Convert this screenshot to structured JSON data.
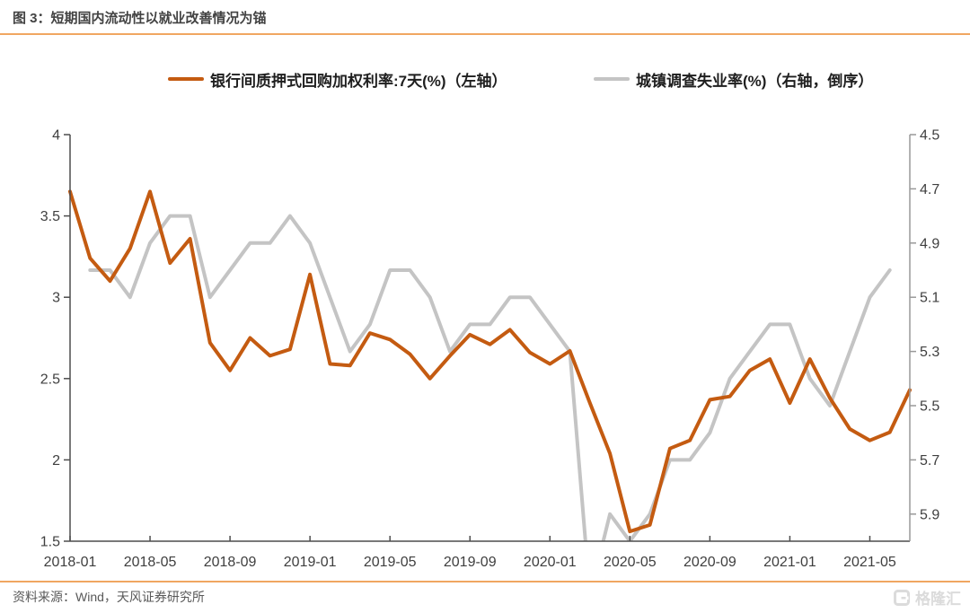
{
  "figure": {
    "title": "图 3：短期国内流动性以就业改善情况为锚"
  },
  "legend": [
    {
      "label": "银行间质押式回购加权利率:7天(%)（左轴）",
      "color": "#C45B11"
    },
    {
      "label": "城镇调查失业率(%)（右轴，倒序）",
      "color": "#C4C4C4"
    }
  ],
  "chart_data": {
    "type": "line",
    "title": "图 3：短期国内流动性以就业改善情况为锚",
    "x": [
      "2018-01",
      "2018-02",
      "2018-03",
      "2018-04",
      "2018-05",
      "2018-06",
      "2018-07",
      "2018-08",
      "2018-09",
      "2018-10",
      "2018-11",
      "2018-12",
      "2019-01",
      "2019-02",
      "2019-03",
      "2019-04",
      "2019-05",
      "2019-06",
      "2019-07",
      "2019-08",
      "2019-09",
      "2019-10",
      "2019-11",
      "2019-12",
      "2020-01",
      "2020-02",
      "2020-03",
      "2020-04",
      "2020-05",
      "2020-06",
      "2020-07",
      "2020-08",
      "2020-09",
      "2020-10",
      "2020-11",
      "2020-12",
      "2021-01",
      "2021-02",
      "2021-03",
      "2021-04",
      "2021-05",
      "2021-06",
      "2021-07"
    ],
    "x_tick_labels": [
      "2018-01",
      "2018-05",
      "2018-09",
      "2019-01",
      "2019-05",
      "2019-09",
      "2020-01",
      "2020-05",
      "2020-09",
      "2021-01",
      "2021-05"
    ],
    "series": [
      {
        "name": "银行间质押式回购加权利率:7天(%)（左轴）",
        "axis": "left",
        "color": "#C45B11",
        "values": [
          3.65,
          3.24,
          3.1,
          3.3,
          3.65,
          3.21,
          3.36,
          2.72,
          2.55,
          2.75,
          2.64,
          2.68,
          3.14,
          2.59,
          2.58,
          2.78,
          2.74,
          2.65,
          2.5,
          2.64,
          2.77,
          2.71,
          2.8,
          2.66,
          2.59,
          2.67,
          2.35,
          2.04,
          1.56,
          1.6,
          2.07,
          2.12,
          2.37,
          2.39,
          2.55,
          2.62,
          2.35,
          2.62,
          2.38,
          2.19,
          2.12,
          2.17,
          2.43
        ]
      },
      {
        "name": "城镇调查失业率(%)（右轴，倒序）",
        "axis": "right",
        "color": "#C4C4C4",
        "values": [
          null,
          5.0,
          5.0,
          5.1,
          4.9,
          4.8,
          4.8,
          5.1,
          5.0,
          4.9,
          4.9,
          4.8,
          4.9,
          5.1,
          5.3,
          5.2,
          5.0,
          5.0,
          5.1,
          5.3,
          5.2,
          5.2,
          5.1,
          5.1,
          5.2,
          5.3,
          6.2,
          5.9,
          6.0,
          5.9,
          5.7,
          5.7,
          5.6,
          5.4,
          5.3,
          5.2,
          5.2,
          5.4,
          5.5,
          5.3,
          5.1,
          5.0,
          null
        ]
      }
    ],
    "left_axis": {
      "min": 1.5,
      "max": 4.0,
      "tick_labels": [
        "4",
        "3.5",
        "3",
        "2.5",
        "2",
        "1.5"
      ],
      "tick_values": [
        4,
        3.5,
        3,
        2.5,
        2,
        1.5
      ]
    },
    "right_axis": {
      "min": 4.5,
      "max": 6.0,
      "inverted": true,
      "tick_labels": [
        "4.5",
        "4.7",
        "4.9",
        "5.1",
        "5.3",
        "5.5",
        "5.7",
        "5.9"
      ],
      "tick_values": [
        4.5,
        4.7,
        4.9,
        5.1,
        5.3,
        5.5,
        5.7,
        5.9
      ]
    },
    "grid": false,
    "legend_position": "top"
  },
  "footer": {
    "source": "资料来源：Wind，天风证券研究所",
    "logo_text": "格隆汇"
  },
  "colors": {
    "accent_rule": "#F0A661",
    "axis_dark": "#4D4D4D",
    "axis_light": "#999999",
    "tick_text": "#3F3F3F",
    "repo_line": "#C45B11",
    "unemployment_line": "#C4C4C4"
  }
}
